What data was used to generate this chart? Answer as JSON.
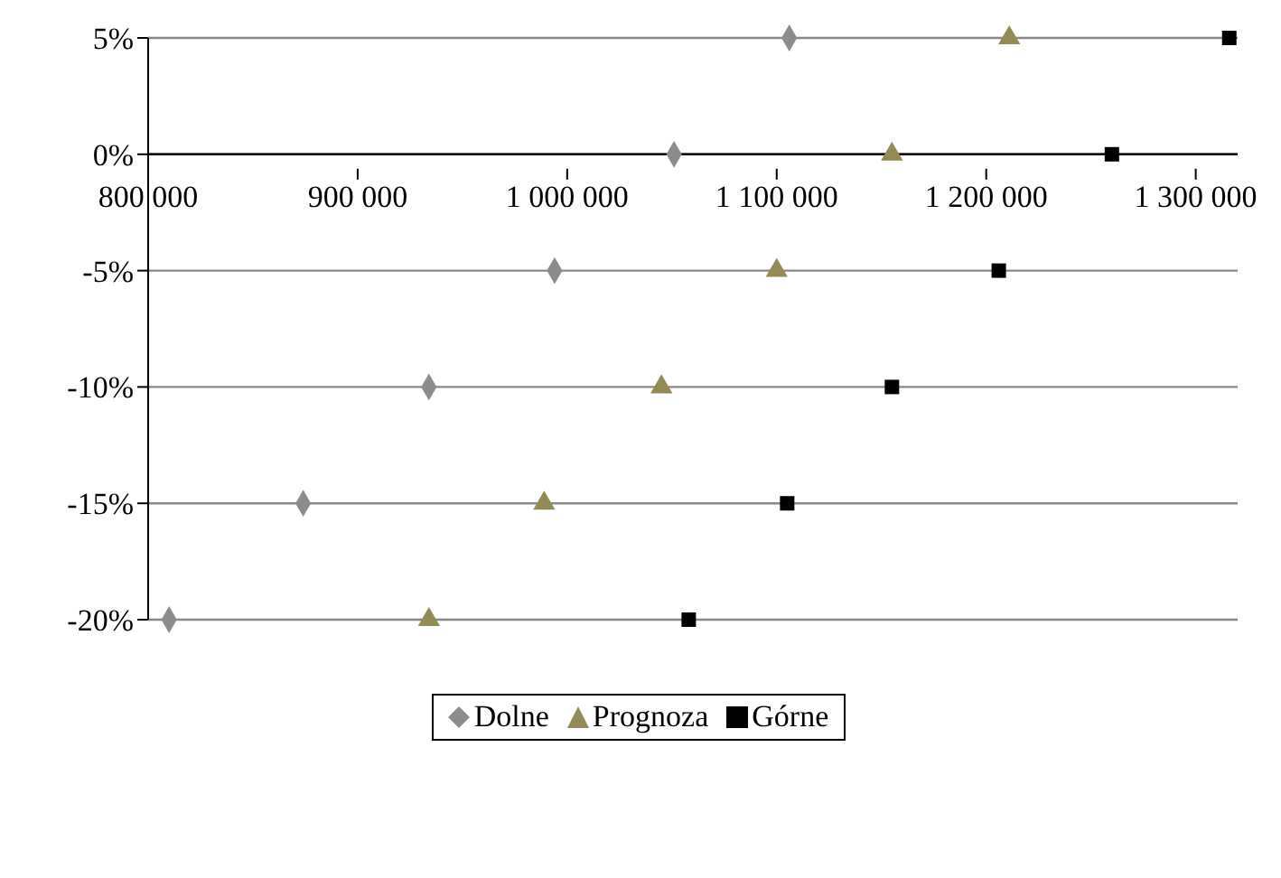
{
  "chart_data": {
    "type": "scatter",
    "xlim": [
      800000,
      1320000
    ],
    "xticks": [
      {
        "value": 800000,
        "label": "800 000"
      },
      {
        "value": 900000,
        "label": "900 000"
      },
      {
        "value": 1000000,
        "label": "1 000 000"
      },
      {
        "value": 1100000,
        "label": "1 100 000"
      },
      {
        "value": 1200000,
        "label": "1 200 000"
      },
      {
        "value": 1300000,
        "label": "1 300 000"
      }
    ],
    "ylim": [
      -20,
      5
    ],
    "yticks": [
      {
        "value": 5,
        "label": "5%"
      },
      {
        "value": 0,
        "label": "0%"
      },
      {
        "value": -5,
        "label": "-5%"
      },
      {
        "value": -10,
        "label": "-10%"
      },
      {
        "value": -15,
        "label": "-15%"
      },
      {
        "value": -20,
        "label": "-20%"
      }
    ],
    "grid": "y",
    "legend": "bottom",
    "series": [
      {
        "name": "Dolne",
        "color": "#8c8c8c",
        "marker": "diamond",
        "x": [
          1106000,
          1051000,
          994000,
          934000,
          874000,
          810000
        ],
        "values": [
          5,
          0,
          -5,
          -10,
          -15,
          -20
        ]
      },
      {
        "name": "Prognoza",
        "color": "#948a54",
        "marker": "triangle",
        "x": [
          1211000,
          1155000,
          1100000,
          1045000,
          989000,
          934000
        ],
        "values": [
          5,
          0,
          -5,
          -10,
          -15,
          -20
        ]
      },
      {
        "name": "Górne",
        "color": "#000000",
        "marker": "square",
        "x": [
          1316000,
          1260000,
          1206000,
          1155000,
          1105000,
          1058000
        ],
        "values": [
          5,
          0,
          -5,
          -10,
          -15,
          -20
        ]
      }
    ]
  }
}
